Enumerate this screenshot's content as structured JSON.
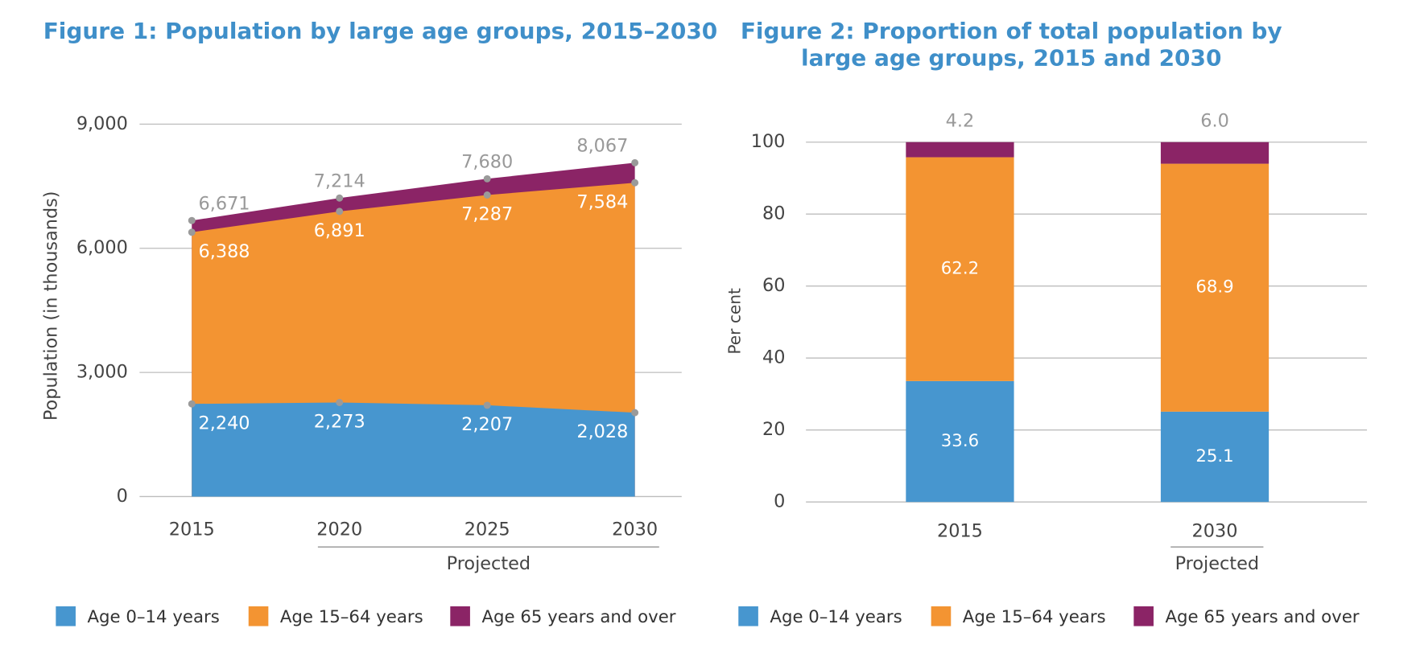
{
  "chart_data": [
    {
      "type": "area",
      "title": "Figure 1: Population by large age groups, 2015–2030",
      "y_label": "Population (in thousands)",
      "annotation": "Projected",
      "categories": [
        "2015",
        "2020",
        "2025",
        "2030"
      ],
      "series": [
        {
          "name": "Age 0–14 years",
          "color": "#4796cf",
          "values": [
            2240,
            2273,
            2207,
            2028
          ],
          "value_labels": [
            "2,240",
            "2,273",
            "2,207",
            "2,028"
          ]
        },
        {
          "name": "Age 15–64 years",
          "color": "#f39432",
          "values": [
            6388,
            6891,
            7287,
            7584
          ],
          "value_labels": [
            "6,388",
            "6,891",
            "7,287",
            "7,584"
          ]
        },
        {
          "name": "Age 65 years and over",
          "color": "#8b2466",
          "values": [
            6671,
            7214,
            7680,
            8067
          ],
          "value_labels": [
            "6,671",
            "7,214",
            "7,680",
            "8,067"
          ]
        }
      ],
      "ylim": [
        0,
        9000
      ],
      "yticks": [
        0,
        {
          "value": 3000,
          "label": "3,000"
        },
        {
          "value": 6000,
          "label": "6,000"
        },
        {
          "value": 9000,
          "label": "9,000"
        }
      ],
      "grid": true,
      "marker_color": "#9a9a9a"
    },
    {
      "type": "stacked_bar",
      "title": "Figure 2: Proportion of total population by large age groups, 2015 and 2030",
      "y_label": "Per cent",
      "annotation": "Projected",
      "categories": [
        "2015",
        "2030"
      ],
      "series": [
        {
          "name": "Age 0–14 years",
          "color": "#4796cf",
          "values": [
            33.6,
            25.1
          ],
          "value_labels": [
            "33.6",
            "25.1"
          ]
        },
        {
          "name": "Age 15–64 years",
          "color": "#f39432",
          "values": [
            62.2,
            68.9
          ],
          "value_labels": [
            "62.2",
            "68.9"
          ]
        },
        {
          "name": "Age 65 years and over",
          "color": "#8b2466",
          "values": [
            4.2,
            6.0
          ],
          "value_labels": [
            "4.2",
            "6.0"
          ]
        }
      ],
      "ylim": [
        0,
        100
      ],
      "yticks": [
        0,
        20,
        40,
        60,
        80,
        100
      ],
      "grid": true
    }
  ]
}
